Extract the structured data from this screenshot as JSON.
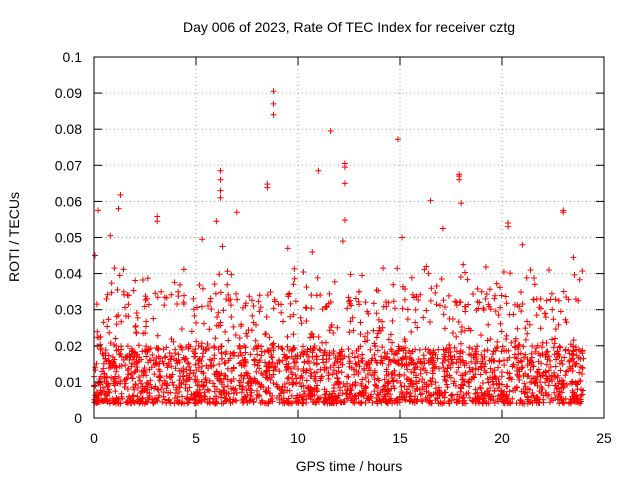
{
  "chart_data": {
    "type": "scatter",
    "title": "Day 006 of 2023, Rate Of TEC Index for receiver cztg",
    "xlabel": "GPS time / hours",
    "ylabel": "ROTI / TECUs",
    "xlim": [
      0,
      25
    ],
    "ylim": [
      0,
      0.1
    ],
    "x_ticks": [
      0,
      5,
      10,
      15,
      20,
      25
    ],
    "x_tick_labels": [
      "0",
      "5",
      "10",
      "15",
      "20",
      "25"
    ],
    "y_ticks": [
      0,
      0.01,
      0.02,
      0.03,
      0.04,
      0.05,
      0.06,
      0.07,
      0.08,
      0.09,
      0.1
    ],
    "y_tick_labels": [
      "0",
      "0.01",
      "0.02",
      "0.03",
      "0.04",
      "0.05",
      "0.06",
      "0.07",
      "0.08",
      "0.09",
      "0.1"
    ],
    "grid": true,
    "marker": "+",
    "color": "#ff0000",
    "x_data_range": [
      0,
      24
    ],
    "bulk_range": [
      0.004,
      0.02
    ],
    "notable_points": [
      {
        "x": 8.8,
        "y": 0.0905
      },
      {
        "x": 8.8,
        "y": 0.087
      },
      {
        "x": 8.8,
        "y": 0.084
      },
      {
        "x": 11.6,
        "y": 0.0795
      },
      {
        "x": 14.9,
        "y": 0.0772
      },
      {
        "x": 11.0,
        "y": 0.0685
      },
      {
        "x": 12.3,
        "y": 0.0705
      },
      {
        "x": 12.3,
        "y": 0.0695
      },
      {
        "x": 12.3,
        "y": 0.065
      },
      {
        "x": 6.2,
        "y": 0.0685
      },
      {
        "x": 6.2,
        "y": 0.066
      },
      {
        "x": 6.2,
        "y": 0.063
      },
      {
        "x": 6.2,
        "y": 0.061
      },
      {
        "x": 17.9,
        "y": 0.0675
      },
      {
        "x": 17.9,
        "y": 0.067
      },
      {
        "x": 17.9,
        "y": 0.066
      },
      {
        "x": 8.5,
        "y": 0.0648
      },
      {
        "x": 8.5,
        "y": 0.0638
      },
      {
        "x": 1.3,
        "y": 0.0618
      },
      {
        "x": 16.5,
        "y": 0.0602
      },
      {
        "x": 18.0,
        "y": 0.0595
      },
      {
        "x": 1.2,
        "y": 0.058
      },
      {
        "x": 0.2,
        "y": 0.0575
      },
      {
        "x": 7.0,
        "y": 0.057
      },
      {
        "x": 23.0,
        "y": 0.0575
      },
      {
        "x": 23.0,
        "y": 0.057
      },
      {
        "x": 3.1,
        "y": 0.0558
      },
      {
        "x": 3.1,
        "y": 0.0545
      },
      {
        "x": 12.3,
        "y": 0.0548
      },
      {
        "x": 20.3,
        "y": 0.054
      },
      {
        "x": 20.3,
        "y": 0.053
      },
      {
        "x": 6.0,
        "y": 0.0545
      },
      {
        "x": 17.1,
        "y": 0.0525
      },
      {
        "x": 0.8,
        "y": 0.0505
      },
      {
        "x": 5.3,
        "y": 0.0495
      },
      {
        "x": 15.1,
        "y": 0.05
      },
      {
        "x": 12.2,
        "y": 0.049
      },
      {
        "x": 9.5,
        "y": 0.047
      },
      {
        "x": 6.3,
        "y": 0.0475
      },
      {
        "x": 21.0,
        "y": 0.048
      },
      {
        "x": 23.5,
        "y": 0.0445
      },
      {
        "x": 10.7,
        "y": 0.046
      },
      {
        "x": 18.1,
        "y": 0.0425
      },
      {
        "x": 21.4,
        "y": 0.041
      },
      {
        "x": 1.0,
        "y": 0.0415
      },
      {
        "x": 16.4,
        "y": 0.04
      },
      {
        "x": 22.3,
        "y": 0.041
      },
      {
        "x": 0.05,
        "y": 0.045
      }
    ]
  }
}
